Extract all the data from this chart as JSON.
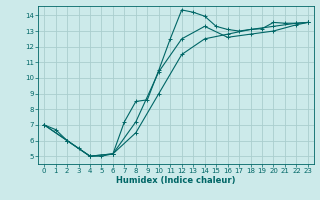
{
  "xlabel": "Humidex (Indice chaleur)",
  "bg_color": "#cceaea",
  "grid_color": "#aacece",
  "line_color": "#006666",
  "xlim": [
    -0.5,
    23.5
  ],
  "ylim": [
    4.5,
    14.6
  ],
  "xticks": [
    0,
    1,
    2,
    3,
    4,
    5,
    6,
    7,
    8,
    9,
    10,
    11,
    12,
    13,
    14,
    15,
    16,
    17,
    18,
    19,
    20,
    21,
    22,
    23
  ],
  "yticks": [
    5,
    6,
    7,
    8,
    9,
    10,
    11,
    12,
    13,
    14
  ],
  "line1_x": [
    0,
    1,
    2,
    3,
    4,
    5,
    6,
    7,
    8,
    9,
    10,
    11,
    12,
    13,
    14,
    15,
    16,
    17,
    18,
    19,
    20,
    21,
    22,
    23
  ],
  "line1_y": [
    7.0,
    6.7,
    6.0,
    5.5,
    5.0,
    5.0,
    5.15,
    7.2,
    8.5,
    8.6,
    10.5,
    12.5,
    14.35,
    14.2,
    13.95,
    13.3,
    13.1,
    13.0,
    13.1,
    13.15,
    13.55,
    13.5,
    13.5,
    13.55
  ],
  "line2_x": [
    0,
    2,
    4,
    6,
    8,
    10,
    12,
    14,
    16,
    18,
    20,
    22,
    23
  ],
  "line2_y": [
    7.0,
    6.0,
    5.0,
    5.15,
    6.5,
    9.0,
    11.5,
    12.5,
    12.8,
    13.1,
    13.3,
    13.5,
    13.55
  ],
  "line3_x": [
    0,
    2,
    4,
    6,
    8,
    10,
    12,
    14,
    16,
    18,
    20,
    22,
    23
  ],
  "line3_y": [
    7.0,
    6.0,
    5.0,
    5.15,
    7.2,
    10.4,
    12.5,
    13.3,
    12.6,
    12.8,
    13.0,
    13.4,
    13.55
  ]
}
